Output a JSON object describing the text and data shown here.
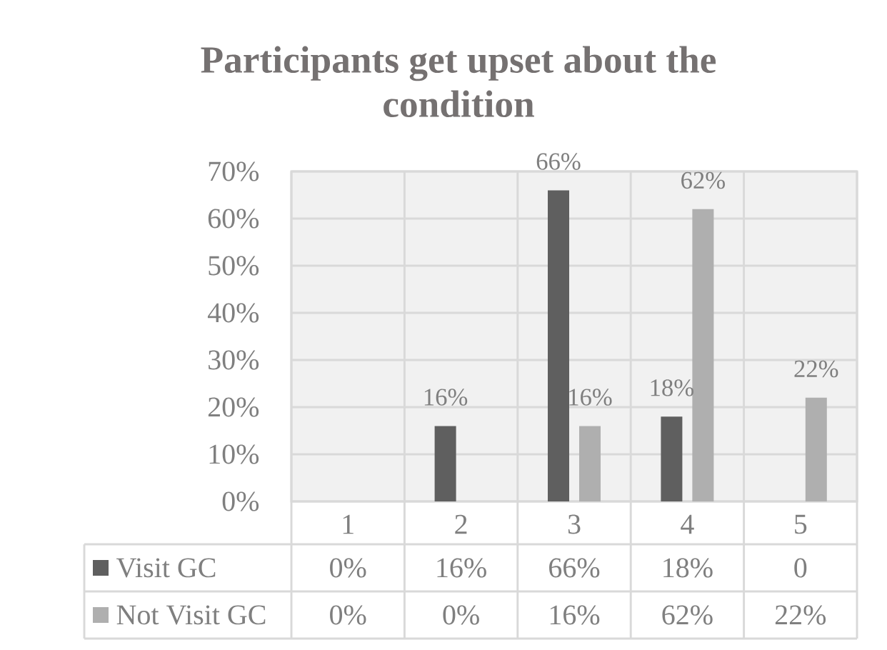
{
  "chart_data": {
    "type": "bar",
    "title": "Participants get upset about the condition",
    "categories": [
      "1",
      "2",
      "3",
      "4",
      "5"
    ],
    "series": [
      {
        "name": "Visit GC",
        "color": "#5f5f5f",
        "values": [
          0,
          16,
          66,
          18,
          0
        ],
        "value_labels": [
          "0%",
          "16%",
          "66%",
          "18%",
          "0"
        ]
      },
      {
        "name": "Not Visit GC",
        "color": "#afafaf",
        "values": [
          0,
          0,
          16,
          62,
          22
        ],
        "value_labels": [
          "0%",
          "0%",
          "16%",
          "62%",
          "22%"
        ]
      }
    ],
    "ylim": [
      0,
      70
    ],
    "yticks": [
      {
        "value": 0,
        "label": "0%"
      },
      {
        "value": 10,
        "label": "10%"
      },
      {
        "value": 20,
        "label": "20%"
      },
      {
        "value": 30,
        "label": "30%"
      },
      {
        "value": 40,
        "label": "40%"
      },
      {
        "value": 50,
        "label": "50%"
      },
      {
        "value": 60,
        "label": "60%"
      },
      {
        "value": 70,
        "label": "70%"
      }
    ],
    "grid": true,
    "legend": "bottom"
  }
}
